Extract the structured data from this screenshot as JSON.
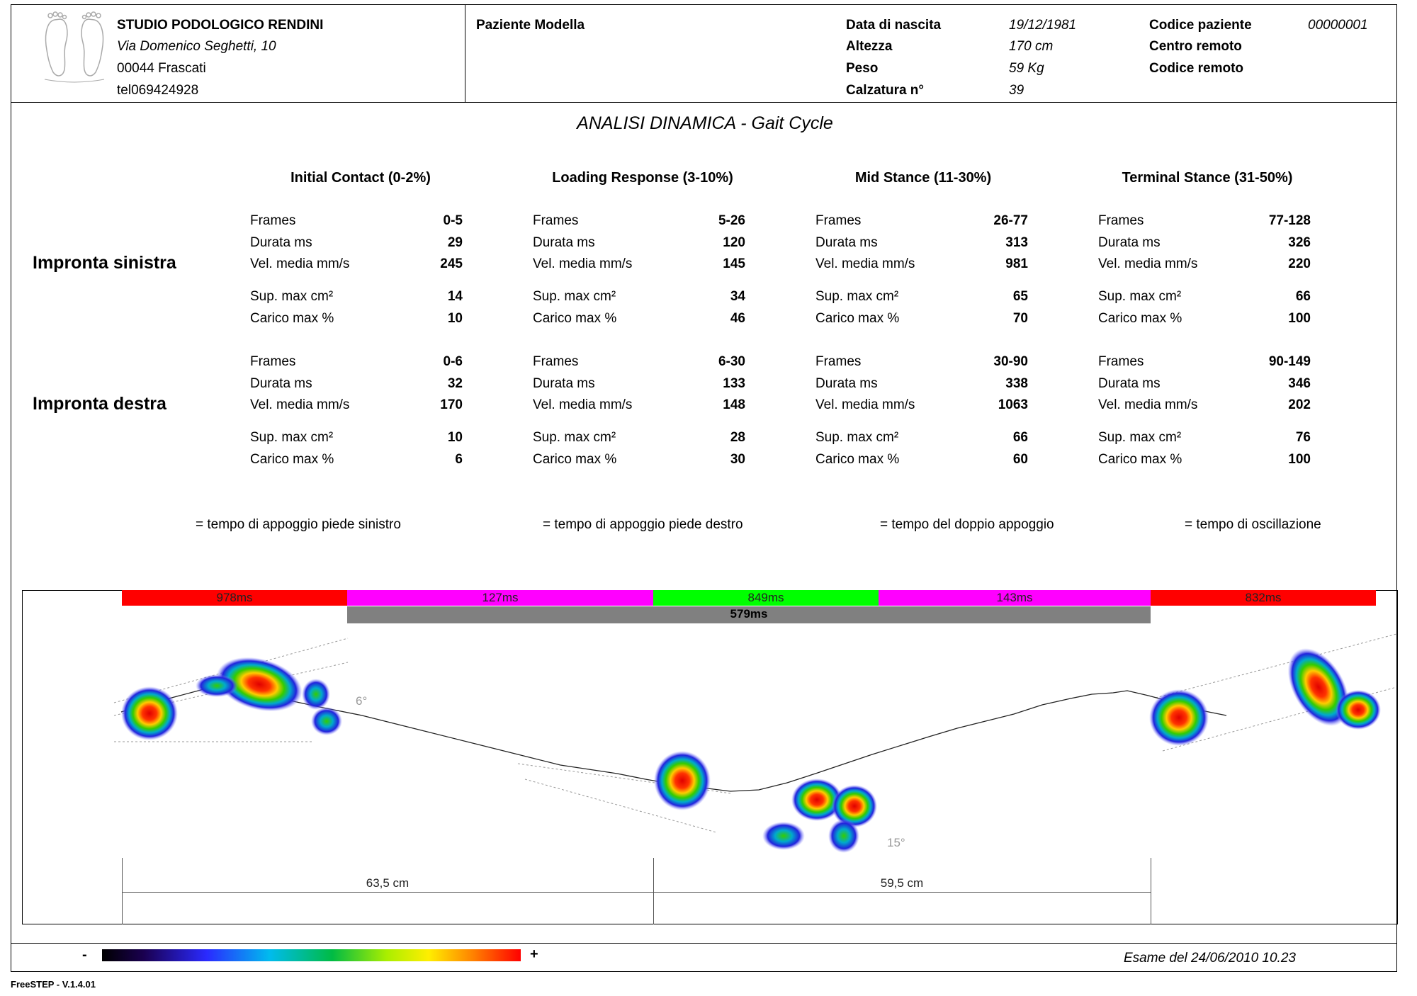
{
  "clinic": {
    "name": "STUDIO PODOLOGICO RENDINI",
    "address": "Via Domenico Seghetti, 10",
    "city": "00044 Frascati",
    "phone": "tel069424928"
  },
  "patient": {
    "name": "Paziente Modella",
    "fields": [
      {
        "label": "Data di nascita",
        "value": "19/12/1981"
      },
      {
        "label": "Altezza",
        "value": "170 cm"
      },
      {
        "label": "Peso",
        "value": "59 Kg"
      },
      {
        "label": "Calzatura n°",
        "value": "39"
      }
    ],
    "code_label": "Codice paziente",
    "code_value": "00000001",
    "remote_center_label": "Centro remoto",
    "remote_code_label": "Codice remoto"
  },
  "report_title": "ANALISI DINAMICA - Gait Cycle",
  "phases": [
    "Initial Contact (0-2%)",
    "Loading Response (3-10%)",
    "Mid Stance (11-30%)",
    "Terminal Stance (31-50%)"
  ],
  "left": {
    "title": "Impronta sinistra",
    "phases": [
      {
        "rows": [
          [
            "Frames",
            "0-5"
          ],
          [
            "Durata ms",
            "29"
          ],
          [
            "Vel. media mm/s",
            "245"
          ],
          [
            "Sup. max cm²",
            "14"
          ],
          [
            "Carico max %",
            "10"
          ]
        ]
      },
      {
        "rows": [
          [
            "Frames",
            "5-26"
          ],
          [
            "Durata ms",
            "120"
          ],
          [
            "Vel. media mm/s",
            "145"
          ],
          [
            "Sup. max cm²",
            "34"
          ],
          [
            "Carico max %",
            "46"
          ]
        ]
      },
      {
        "rows": [
          [
            "Frames",
            "26-77"
          ],
          [
            "Durata ms",
            "313"
          ],
          [
            "Vel. media mm/s",
            "981"
          ],
          [
            "Sup. max cm²",
            "65"
          ],
          [
            "Carico max %",
            "70"
          ]
        ]
      },
      {
        "rows": [
          [
            "Frames",
            "77-128"
          ],
          [
            "Durata ms",
            "326"
          ],
          [
            "Vel. media mm/s",
            "220"
          ],
          [
            "Sup. max cm²",
            "66"
          ],
          [
            "Carico max %",
            "100"
          ]
        ]
      }
    ]
  },
  "right": {
    "title": "Impronta destra",
    "phases": [
      {
        "rows": [
          [
            "Frames",
            "0-6"
          ],
          [
            "Durata ms",
            "32"
          ],
          [
            "Vel. media mm/s",
            "170"
          ],
          [
            "Sup. max cm²",
            "10"
          ],
          [
            "Carico max %",
            "6"
          ]
        ]
      },
      {
        "rows": [
          [
            "Frames",
            "6-30"
          ],
          [
            "Durata ms",
            "133"
          ],
          [
            "Vel. media mm/s",
            "148"
          ],
          [
            "Sup. max cm²",
            "28"
          ],
          [
            "Carico max %",
            "30"
          ]
        ]
      },
      {
        "rows": [
          [
            "Frames",
            "30-90"
          ],
          [
            "Durata ms",
            "338"
          ],
          [
            "Vel. media mm/s",
            "1063"
          ],
          [
            "Sup. max cm²",
            "66"
          ],
          [
            "Carico max %",
            "60"
          ]
        ]
      },
      {
        "rows": [
          [
            "Frames",
            "90-149"
          ],
          [
            "Durata ms",
            "346"
          ],
          [
            "Vel. media mm/s",
            "202"
          ],
          [
            "Sup. max cm²",
            "76"
          ],
          [
            "Carico max %",
            "100"
          ]
        ]
      }
    ]
  },
  "legend": [
    {
      "text": "= tempo di appoggio piede sinistro",
      "color": "#ff0000"
    },
    {
      "text": "= tempo di appoggio piede destro",
      "color": "#ff00ff"
    },
    {
      "text": "= tempo del doppio appoggio",
      "color": "#00ff00"
    },
    {
      "text": "= tempo di oscillazione",
      "color": "#808080"
    }
  ],
  "timeline": {
    "top": [
      {
        "label": "978ms",
        "color": "#ff0000"
      },
      {
        "label": "127ms",
        "color": "#ff00ff"
      },
      {
        "label": "849ms",
        "color": "#00ff00"
      },
      {
        "label": "143ms",
        "color": "#ff00ff"
      },
      {
        "label": "832ms",
        "color": "#ff0000"
      }
    ],
    "swing": {
      "label": "579ms",
      "color": "#808080"
    }
  },
  "measurements": [
    "63,5 cm",
    "59,5 cm"
  ],
  "angles": [
    "6°",
    "15°"
  ],
  "scale": {
    "minus": "-",
    "plus": "+"
  },
  "exam_date": "Esame del 24/06/2010 10.23",
  "software": "FreeSTEP - V.1.4.01"
}
